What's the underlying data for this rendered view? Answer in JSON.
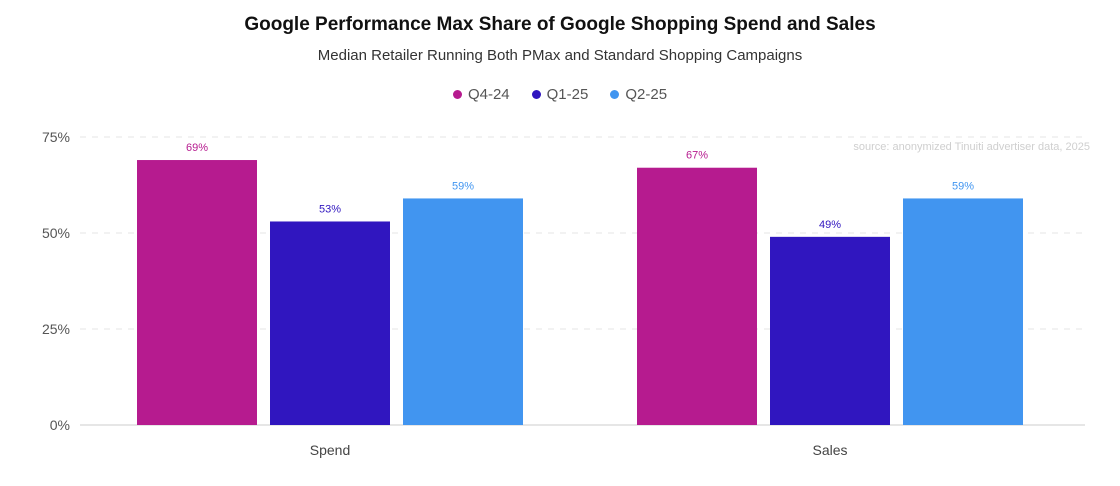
{
  "chart_data": {
    "type": "bar",
    "title": "Google Performance Max Share of Google Shopping Spend and Sales",
    "subtitle": "Median Retailer Running Both PMax and Standard Shopping Campaigns",
    "source": "source: anonymized Tinuiti advertiser data, 2025",
    "categories": [
      "Spend",
      "Sales"
    ],
    "series": [
      {
        "name": "Q4-24",
        "color": "#b61b8f",
        "values": [
          69,
          67
        ],
        "labels": [
          "69%",
          "67%"
        ]
      },
      {
        "name": "Q1-25",
        "color": "#3016bf",
        "values": [
          53,
          49
        ],
        "labels": [
          "53%",
          "49%"
        ]
      },
      {
        "name": "Q2-25",
        "color": "#4195f0",
        "values": [
          59,
          59
        ],
        "labels": [
          "59%",
          "59%"
        ]
      }
    ],
    "ylim": [
      0,
      75
    ],
    "yticks": [
      0,
      25,
      50,
      75
    ],
    "ytick_labels": [
      "0%",
      "25%",
      "50%",
      "75%"
    ],
    "grid": true,
    "legend_position": "top-center"
  }
}
